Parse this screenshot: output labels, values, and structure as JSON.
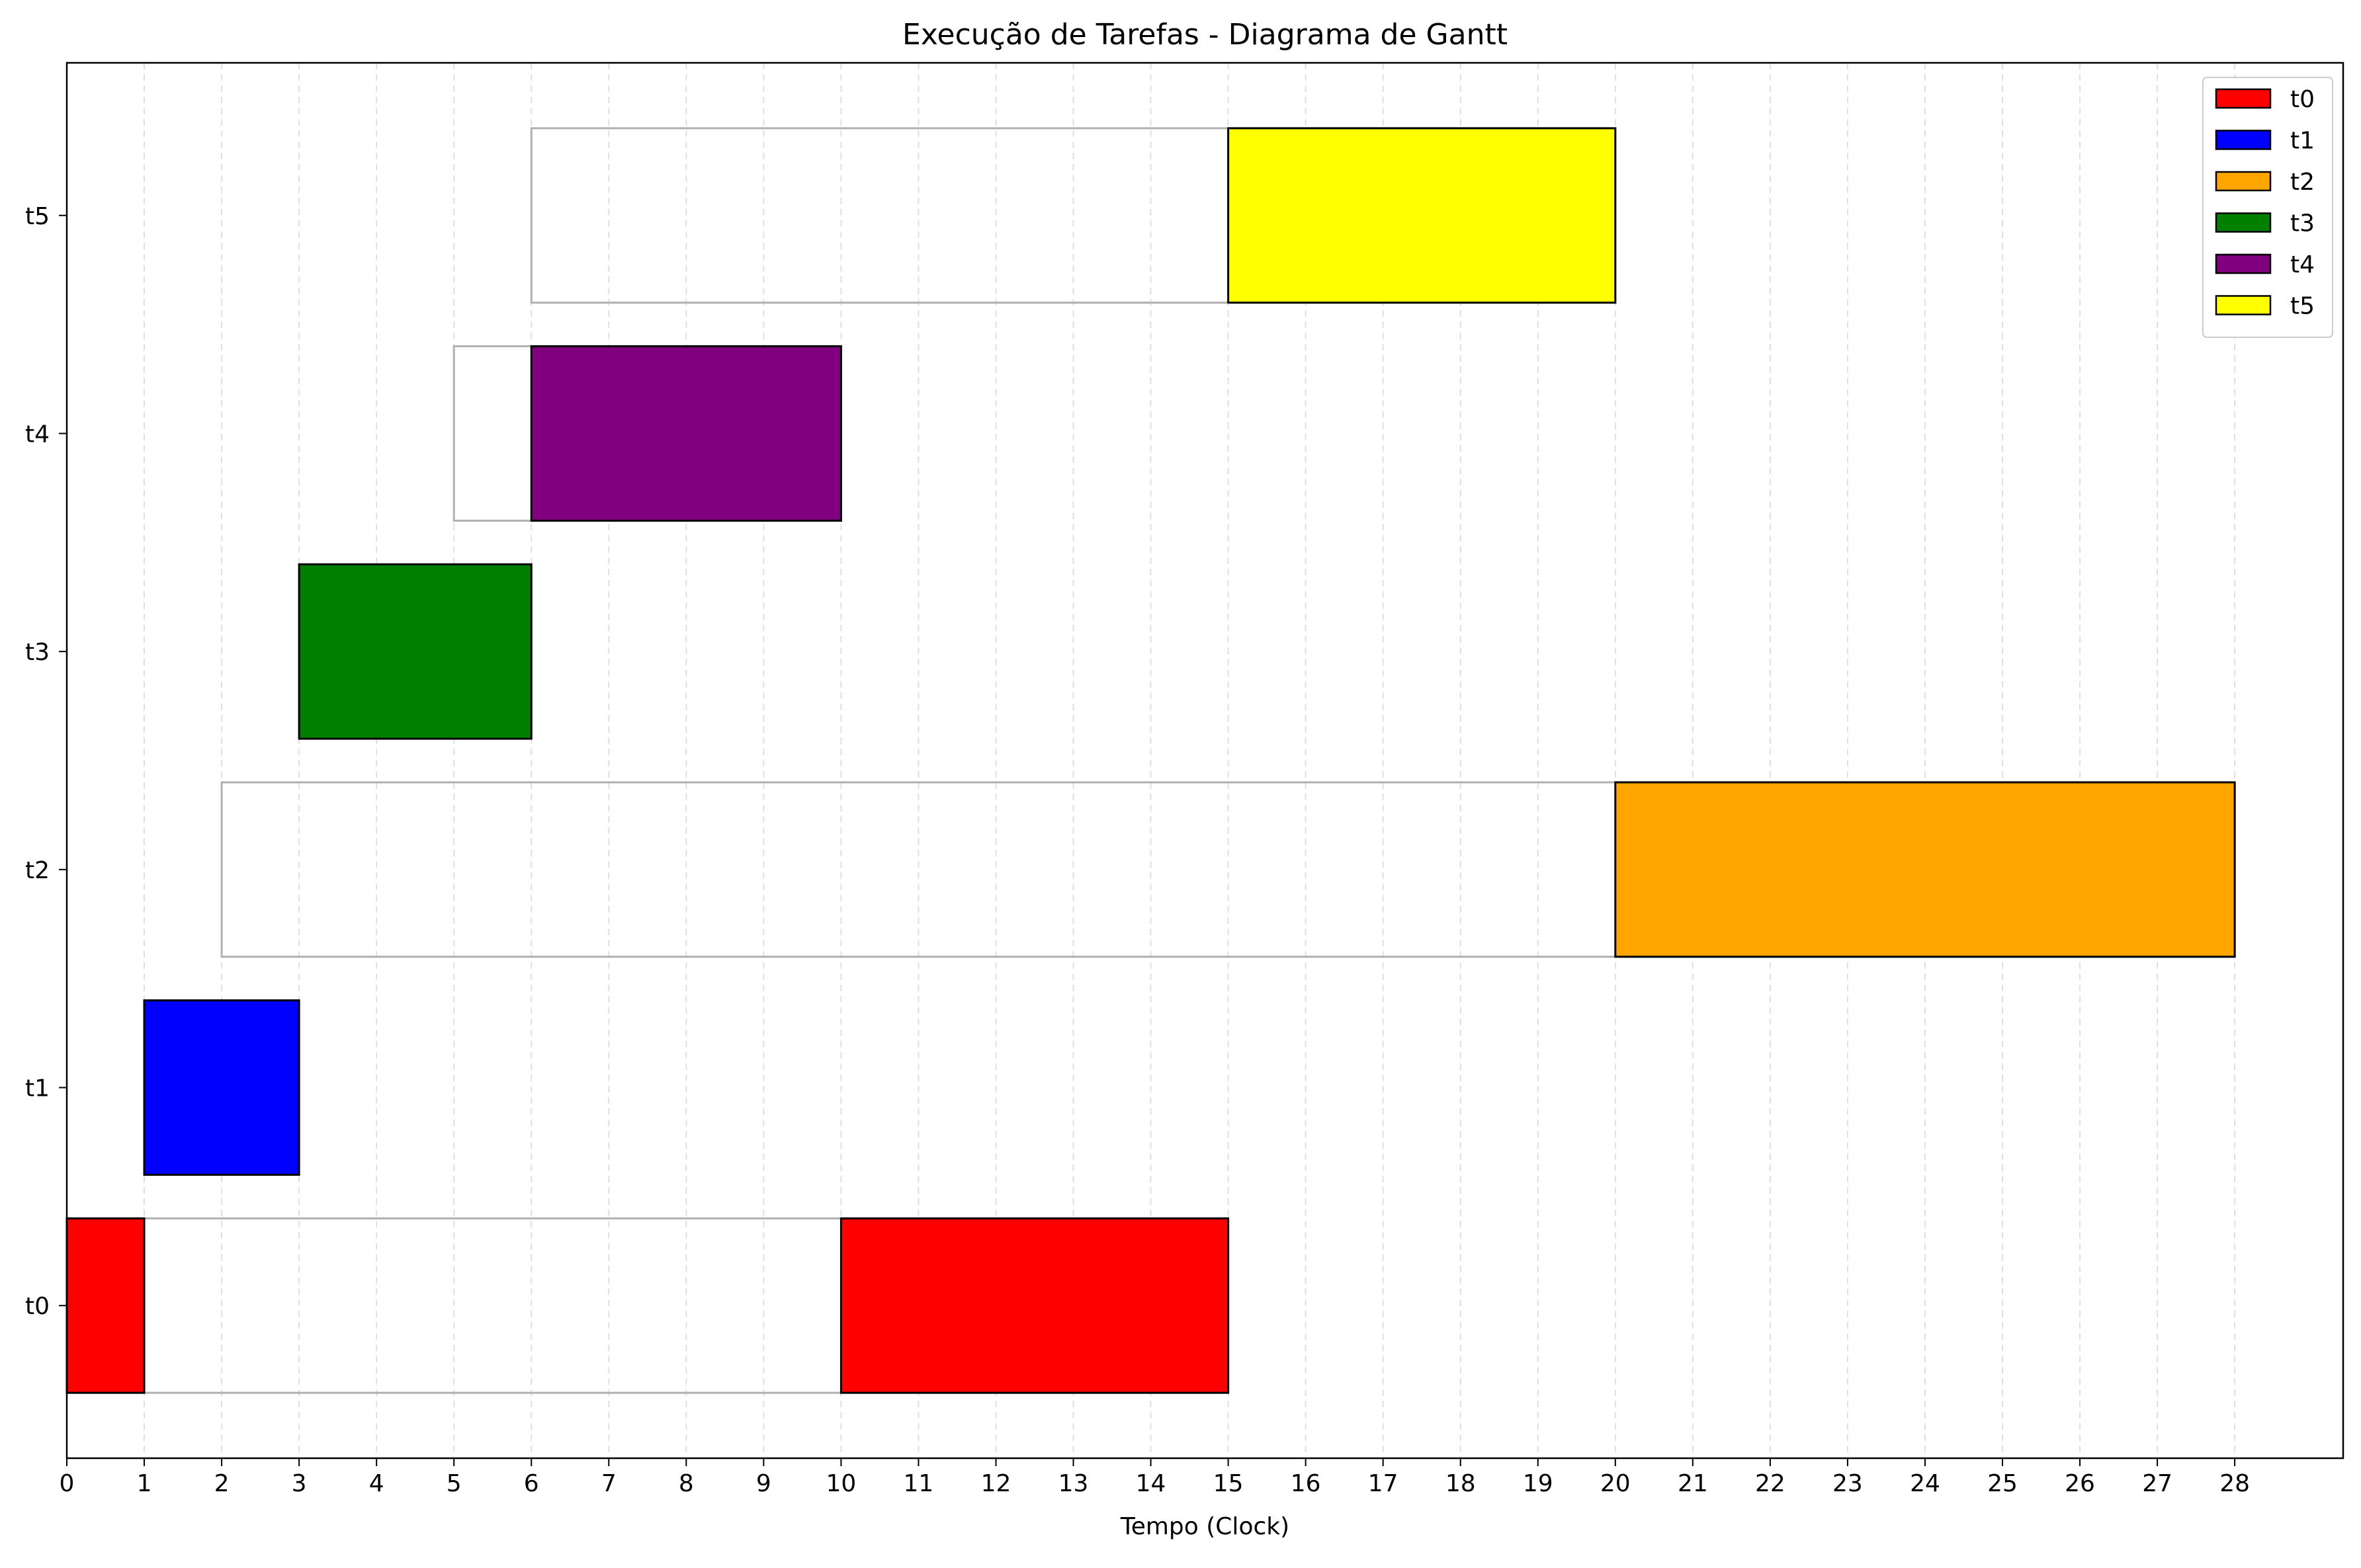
{
  "chart_data": {
    "type": "gantt",
    "title": "Execução de Tarefas - Diagrama de Gantt",
    "xlabel": "Tempo (Clock)",
    "ylabel": "",
    "xlim": [
      0,
      29.4
    ],
    "x_ticks": [
      0,
      1,
      2,
      3,
      4,
      5,
      6,
      7,
      8,
      9,
      10,
      11,
      12,
      13,
      14,
      15,
      16,
      17,
      18,
      19,
      20,
      21,
      22,
      23,
      24,
      25,
      26,
      27,
      28
    ],
    "x_tick_labels": [
      "0",
      "1",
      "2",
      "3",
      "4",
      "5",
      "6",
      "7",
      "8",
      "9",
      "10",
      "11",
      "12",
      "13",
      "14",
      "15",
      "16",
      "17",
      "18",
      "19",
      "20",
      "21",
      "22",
      "23",
      "24",
      "25",
      "26",
      "27",
      "28"
    ],
    "y_categories": [
      "t0",
      "t1",
      "t2",
      "t3",
      "t4",
      "t5"
    ],
    "grid": {
      "x": true,
      "y": false,
      "style": "dashed",
      "color": "#e0e0e0"
    },
    "legend": {
      "position": "top-right",
      "entries": [
        {
          "label": "t0",
          "color": "#ff0000"
        },
        {
          "label": "t1",
          "color": "#0000ff"
        },
        {
          "label": "t2",
          "color": "#ffa500"
        },
        {
          "label": "t3",
          "color": "#008000"
        },
        {
          "label": "t4",
          "color": "#800080"
        },
        {
          "label": "t5",
          "color": "#ffff00"
        }
      ]
    },
    "tasks": [
      {
        "name": "t0",
        "color": "#ff0000",
        "waiting": [
          {
            "start": 0,
            "end": 15
          }
        ],
        "execution": [
          {
            "start": 0,
            "end": 1
          },
          {
            "start": 10,
            "end": 15
          }
        ]
      },
      {
        "name": "t1",
        "color": "#0000ff",
        "waiting": [],
        "execution": [
          {
            "start": 1,
            "end": 3
          }
        ]
      },
      {
        "name": "t2",
        "color": "#ffa500",
        "waiting": [
          {
            "start": 2,
            "end": 28
          }
        ],
        "execution": [
          {
            "start": 20,
            "end": 28
          }
        ]
      },
      {
        "name": "t3",
        "color": "#008000",
        "waiting": [],
        "execution": [
          {
            "start": 3,
            "end": 6
          }
        ]
      },
      {
        "name": "t4",
        "color": "#800080",
        "waiting": [
          {
            "start": 5,
            "end": 10
          }
        ],
        "execution": [
          {
            "start": 6,
            "end": 10
          }
        ]
      },
      {
        "name": "t5",
        "color": "#ffff00",
        "waiting": [
          {
            "start": 6,
            "end": 20
          }
        ],
        "execution": [
          {
            "start": 15,
            "end": 20
          }
        ]
      }
    ]
  }
}
